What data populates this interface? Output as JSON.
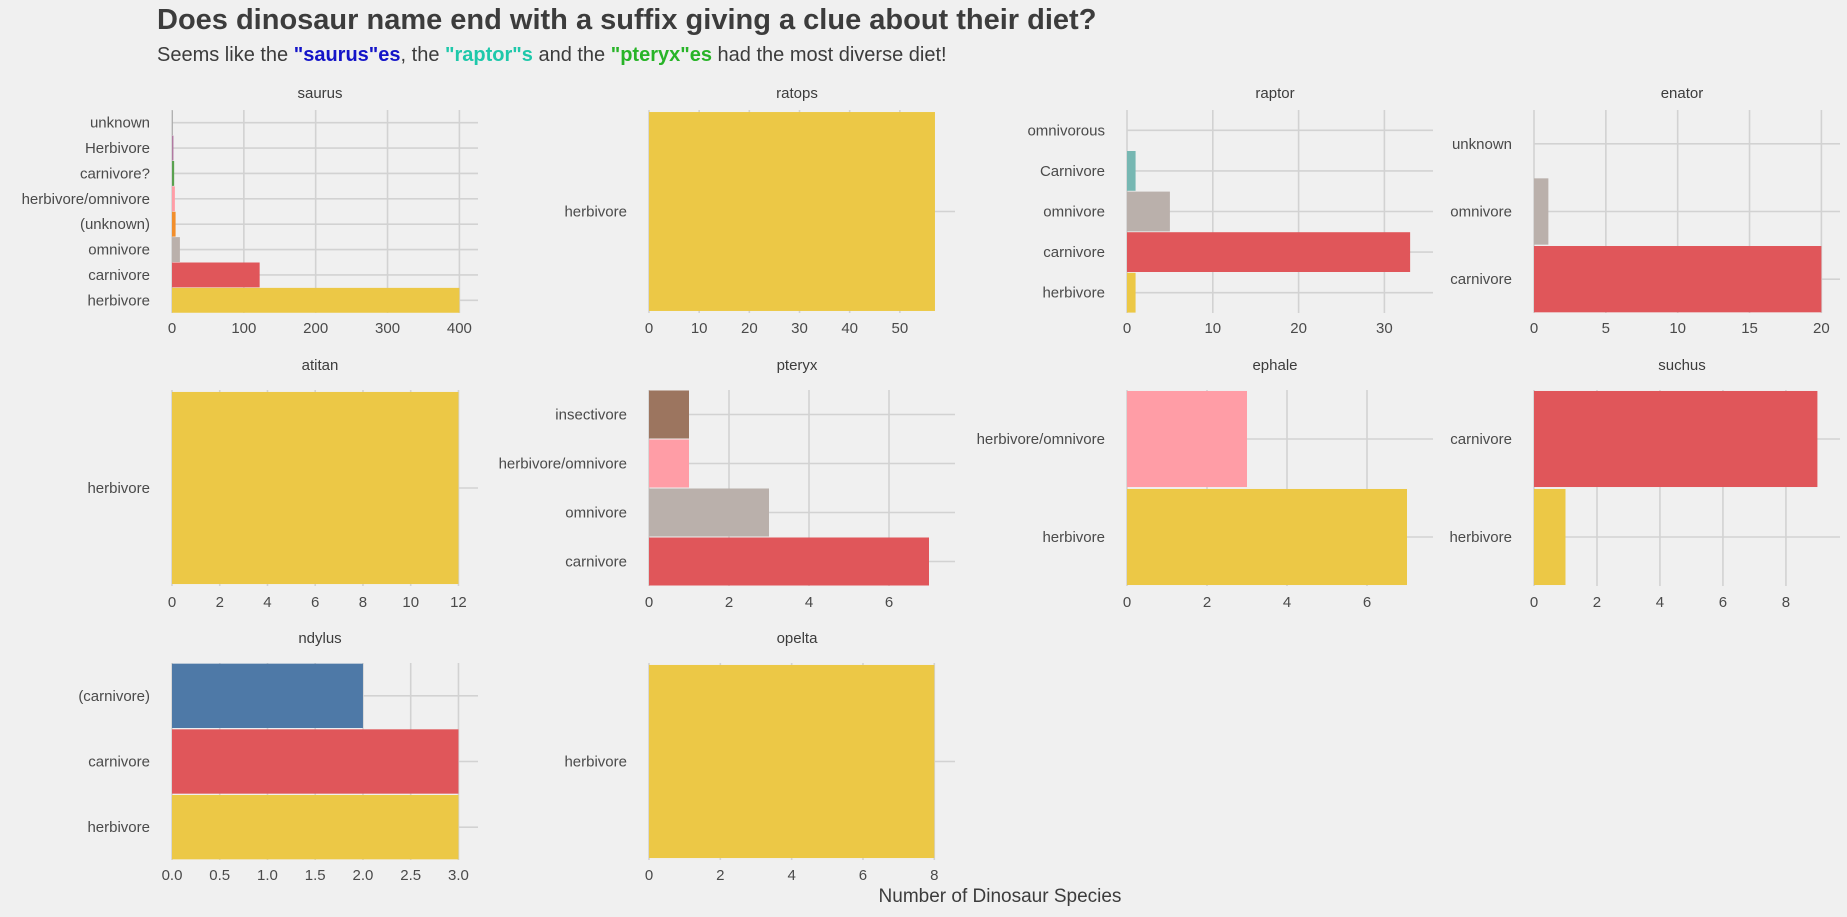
{
  "title": "Does dinosaur name end with a suffix giving a clue about their diet?",
  "subtitle": {
    "prefix": "Seems like the ",
    "saurus": "\"saurus\"es",
    "mid1": ", the ",
    "raptor": "\"raptor\"s",
    "mid2": " and the ",
    "pteryx": "\"pteryx\"es",
    "suffix": " had the most diverse diet!"
  },
  "colors": {
    "background": "#f0f0f0",
    "grid": "#d2d2d2",
    "saurus": "#1414c8",
    "raptor": "#1ec8aa",
    "pteryx": "#28b428",
    "herbivore": "#ecc846",
    "carnivore": "#e0565a",
    "omnivore": "#bab0ab",
    "herbivore/omnivore": "#ff9da6",
    "(unknown)": "#f28e2b",
    "carnivore?": "#59a14f",
    "Herbivore": "#b07aa1",
    "unknown": "#a0a0a0",
    "Carnivore": "#76b7b2",
    "omnivorous": "#a0a0a0",
    "insectivore": "#9c755f",
    "(carnivore)": "#4e79a7"
  },
  "chart_data": {
    "type": "bar",
    "orientation": "horizontal",
    "xlabel": "Number of Dinosaur Species",
    "grid": true,
    "panels": [
      {
        "title": "saurus",
        "categories": [
          "herbivore",
          "carnivore",
          "omnivore",
          "(unknown)",
          "herbivore/omnivore",
          "carnivore?",
          "Herbivore",
          "unknown"
        ],
        "values": [
          400,
          122,
          11,
          5,
          4,
          3,
          2,
          1
        ],
        "xlim": [
          0,
          412
        ],
        "xticks": [
          0,
          100,
          200,
          300,
          400
        ],
        "xtick_labels": [
          "0",
          "100",
          "200",
          "300",
          "400"
        ]
      },
      {
        "title": "ratops",
        "categories": [
          "herbivore"
        ],
        "values": [
          57
        ],
        "xlim": [
          0,
          59
        ],
        "xticks": [
          0,
          10,
          20,
          30,
          40,
          50
        ],
        "xtick_labels": [
          "0",
          "10",
          "20",
          "30",
          "40",
          "50"
        ]
      },
      {
        "title": "raptor",
        "categories": [
          "herbivore",
          "carnivore",
          "omnivore",
          "Carnivore",
          "omnivorous"
        ],
        "values": [
          1,
          33,
          5,
          1,
          0
        ],
        "xlim": [
          0,
          34.5
        ],
        "xticks": [
          0,
          10,
          20,
          30
        ],
        "xtick_labels": [
          "0",
          "10",
          "20",
          "30"
        ]
      },
      {
        "title": "enator",
        "categories": [
          "carnivore",
          "omnivore",
          "unknown"
        ],
        "values": [
          20,
          1,
          0
        ],
        "xlim": [
          0,
          20.6
        ],
        "xticks": [
          0,
          5,
          10,
          15,
          20
        ],
        "xtick_labels": [
          "0",
          "5",
          "10",
          "15",
          "20"
        ]
      },
      {
        "title": "atitan",
        "categories": [
          "herbivore"
        ],
        "values": [
          12
        ],
        "xlim": [
          0,
          12.4
        ],
        "xticks": [
          0,
          2,
          4,
          6,
          8,
          10,
          12
        ],
        "xtick_labels": [
          "0",
          "2",
          "4",
          "6",
          "8",
          "10",
          "12"
        ]
      },
      {
        "title": "pteryx",
        "categories": [
          "carnivore",
          "omnivore",
          "herbivore/omnivore",
          "insectivore"
        ],
        "values": [
          7,
          3,
          1,
          1
        ],
        "xlim": [
          0,
          7.4
        ],
        "xticks": [
          0,
          2,
          4,
          6
        ],
        "xtick_labels": [
          "0",
          "2",
          "4",
          "6"
        ]
      },
      {
        "title": "ephale",
        "categories": [
          "herbivore",
          "herbivore/omnivore"
        ],
        "values": [
          7,
          3
        ],
        "xlim": [
          0,
          7.4
        ],
        "xticks": [
          0,
          2,
          4,
          6
        ],
        "xtick_labels": [
          "0",
          "2",
          "4",
          "6"
        ]
      },
      {
        "title": "suchus",
        "categories": [
          "herbivore",
          "carnivore"
        ],
        "values": [
          1,
          9
        ],
        "xlim": [
          0,
          9.4
        ],
        "xticks": [
          0,
          2,
          4,
          6,
          8
        ],
        "xtick_labels": [
          "0",
          "2",
          "4",
          "6",
          "8"
        ]
      },
      {
        "title": "ndylus",
        "categories": [
          "herbivore",
          "carnivore",
          "(carnivore)"
        ],
        "values": [
          3,
          3,
          2
        ],
        "xlim": [
          0,
          3.1
        ],
        "xticks": [
          0,
          0.5,
          1,
          1.5,
          2,
          2.5,
          3
        ],
        "xtick_labels": [
          "0.0",
          "0.5",
          "1.0",
          "1.5",
          "2.0",
          "2.5",
          "3.0"
        ]
      },
      {
        "title": "opelta",
        "categories": [
          "herbivore"
        ],
        "values": [
          8
        ],
        "xlim": [
          0,
          8.3
        ],
        "xticks": [
          0,
          2,
          4,
          6,
          8
        ],
        "xtick_labels": [
          "0",
          "2",
          "4",
          "6",
          "8"
        ]
      }
    ]
  }
}
